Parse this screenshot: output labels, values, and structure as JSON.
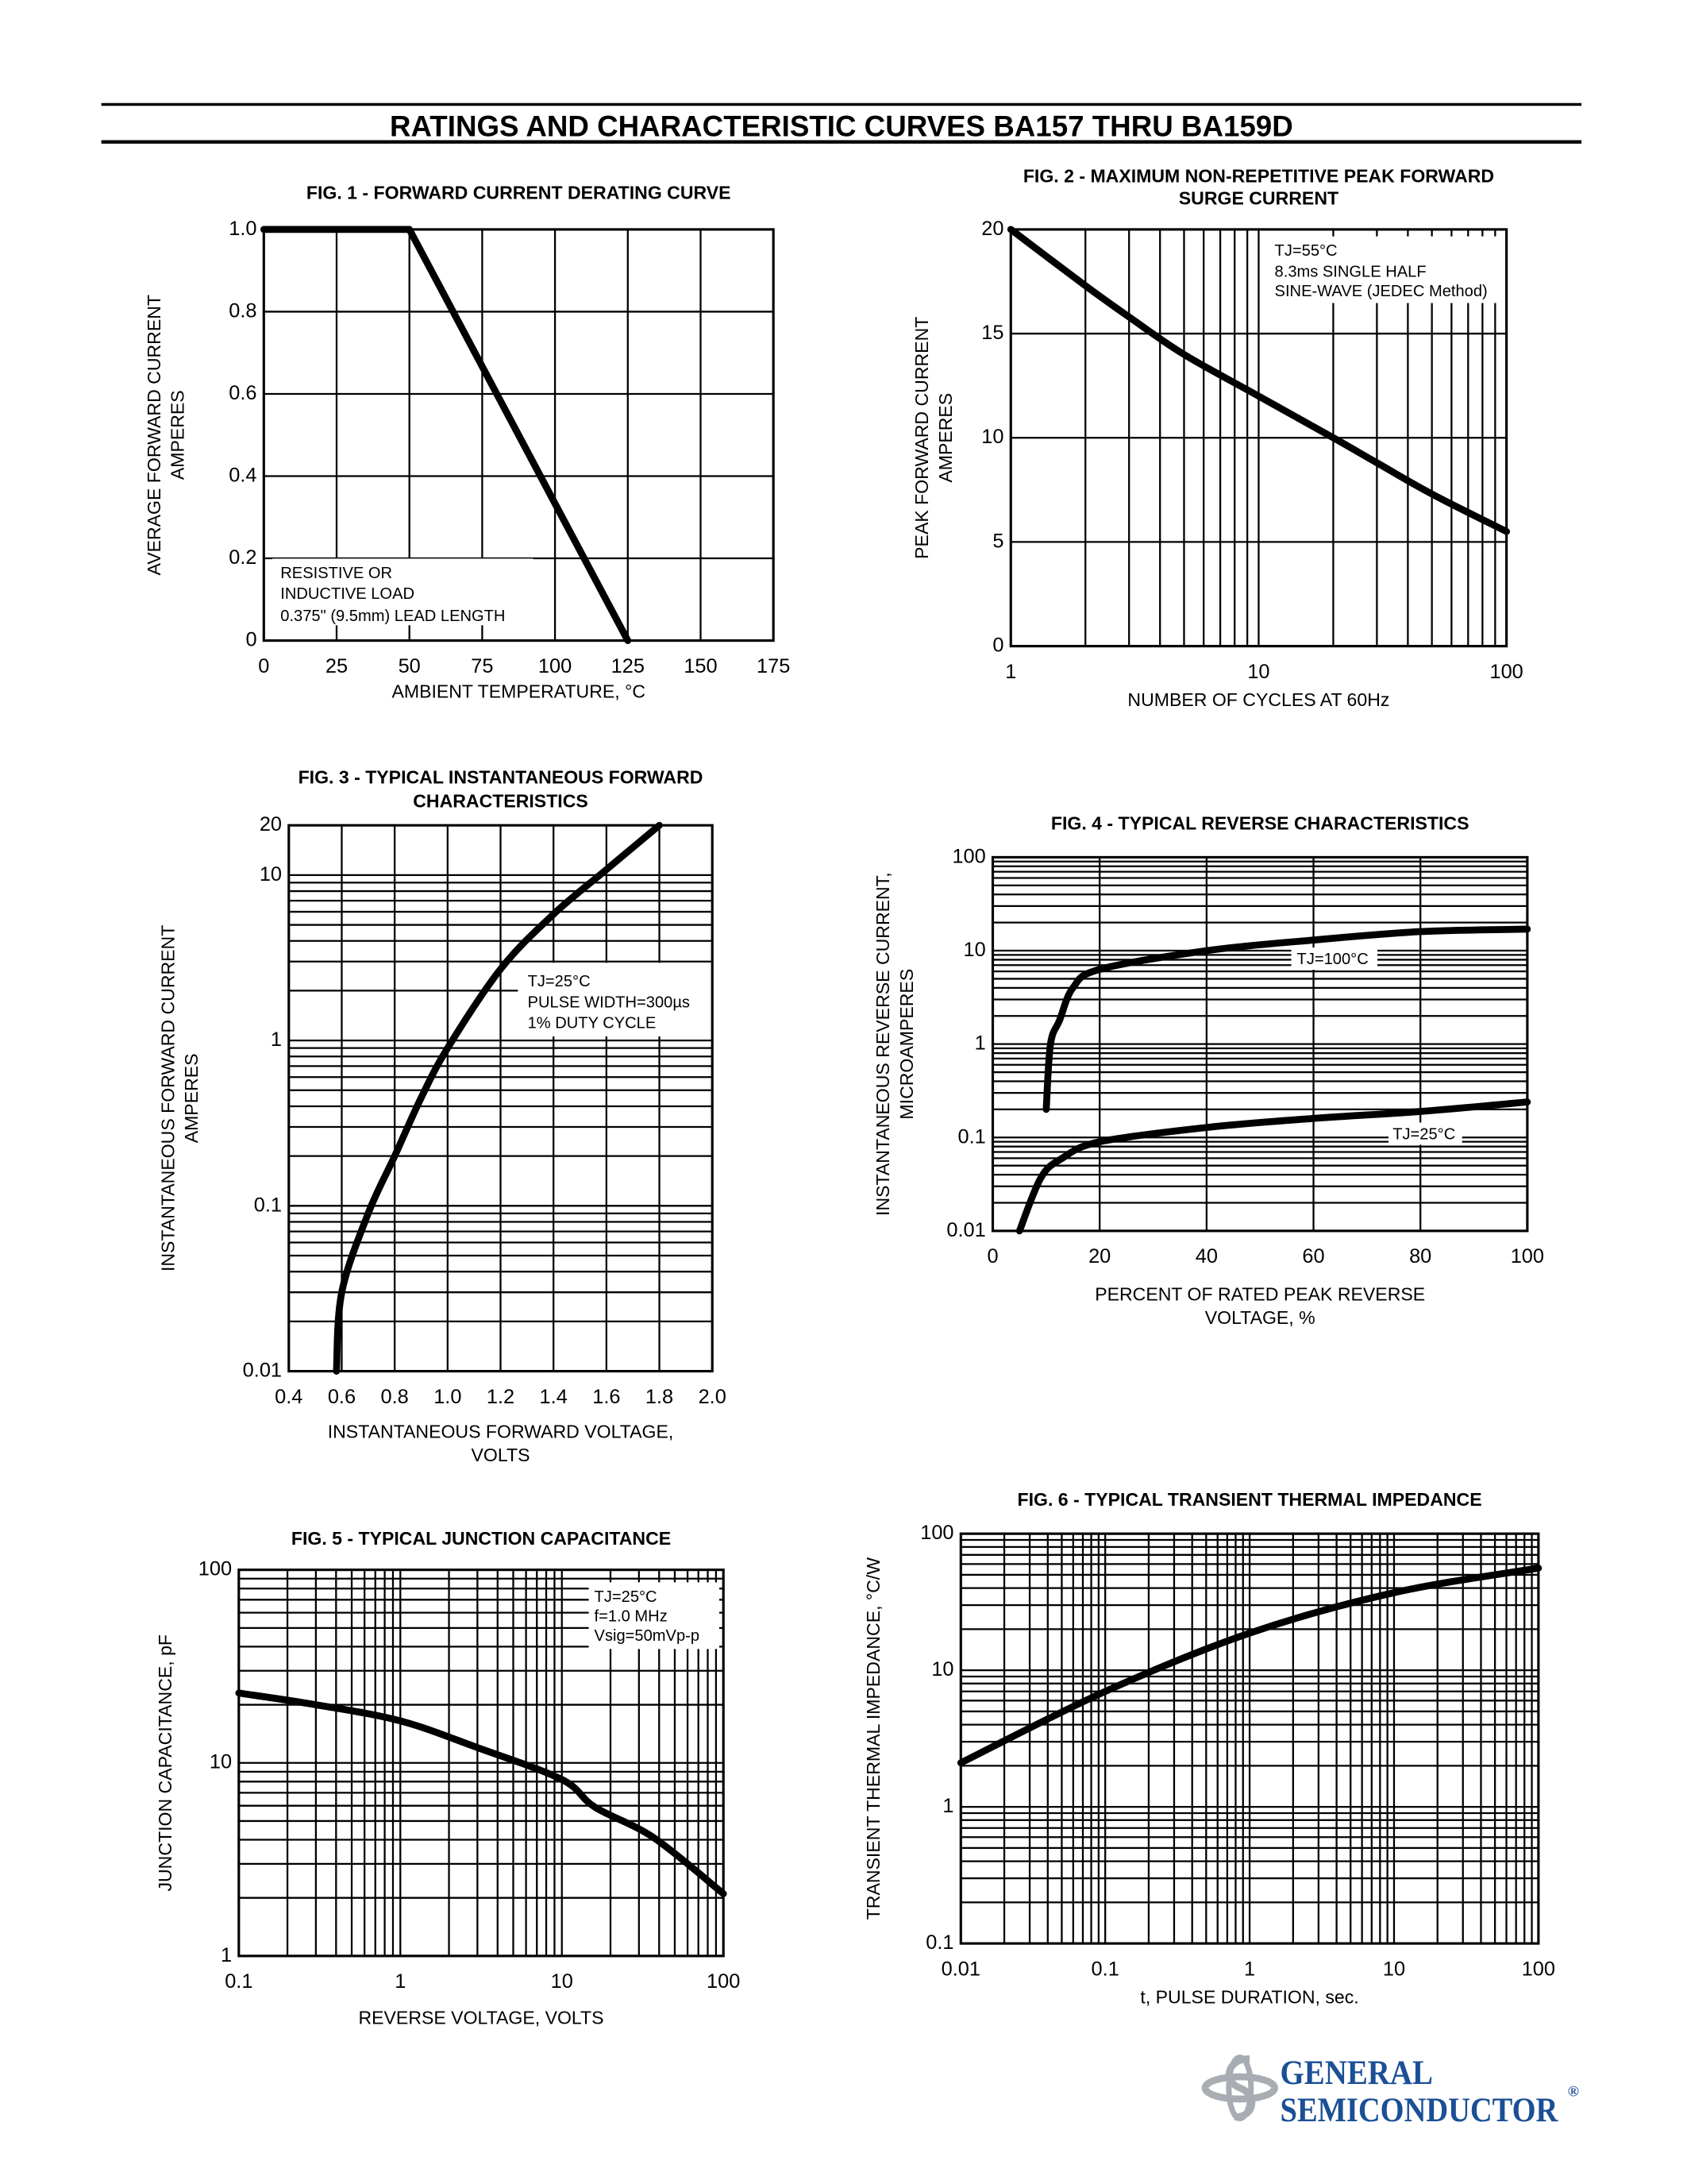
{
  "header": {
    "title": "RATINGS AND CHARACTERISTIC CURVES BA157 THRU BA159D"
  },
  "logo": {
    "line1": "GENERAL",
    "line2": "SEMICONDUCTOR",
    "mark": "®",
    "color": "#1b4f96",
    "emblem_color": "#a8adb3"
  },
  "chart_data": [
    {
      "type": "line",
      "title": [
        "FIG. 1 - FORWARD CURRENT DERATING CURVE"
      ],
      "xlabel": [
        "AMBIENT TEMPERATURE, °C"
      ],
      "ylabel": [
        "AVERAGE FORWARD CURRENT",
        "AMPERES"
      ],
      "xscale": "linear",
      "yscale": "linear",
      "xlim": [
        0,
        175
      ],
      "ylim": [
        0,
        1.0
      ],
      "xticks": [
        0,
        25,
        50,
        75,
        100,
        125,
        150,
        175
      ],
      "xtick_labels": [
        "0",
        "25",
        "50",
        "75",
        "100",
        "125",
        "150",
        "175"
      ],
      "yticks": [
        0,
        0.2,
        0.4,
        0.6,
        0.8,
        1.0
      ],
      "ytick_labels": [
        "0",
        "0.2",
        "0.4",
        "0.6",
        "0.8",
        "1.0"
      ],
      "grid": true,
      "series": [
        {
          "smooth": false,
          "points": [
            [
              0,
              1.0
            ],
            [
              50,
              1.0
            ],
            [
              125,
              0
            ]
          ]
        }
      ],
      "annotations": [
        {
          "lines": [
            "RESISTIVE OR",
            "INDUCTIVE LOAD",
            "0.375\" (9.5mm) LEAD LENGTH"
          ]
        }
      ]
    },
    {
      "type": "line",
      "title": [
        "FIG. 2 - MAXIMUM NON-REPETITIVE PEAK FORWARD",
        "SURGE CURRENT"
      ],
      "xlabel": [
        "NUMBER OF CYCLES AT 60Hz"
      ],
      "ylabel": [
        "PEAK FORWARD CURRENT",
        "AMPERES"
      ],
      "xscale": "log",
      "yscale": "linear",
      "xlim": [
        1,
        100
      ],
      "ylim": [
        0,
        20
      ],
      "xticks": [
        1,
        10,
        100
      ],
      "xtick_labels": [
        "1",
        "10",
        "100"
      ],
      "yticks": [
        0,
        5,
        10,
        15,
        20
      ],
      "ytick_labels": [
        "0",
        "5",
        "10",
        "15",
        "20"
      ],
      "grid": true,
      "series": [
        {
          "smooth": true,
          "points": [
            [
              1,
              20
            ],
            [
              2,
              17.3
            ],
            [
              3,
              15.8
            ],
            [
              5,
              14
            ],
            [
              10,
              12
            ],
            [
              20,
              10
            ],
            [
              30,
              8.8
            ],
            [
              50,
              7.3
            ],
            [
              100,
              5.5
            ]
          ]
        }
      ],
      "annotations": [
        {
          "lines": [
            "TJ=55°C",
            "8.3ms SINGLE HALF",
            "SINE-WAVE (JEDEC Method)"
          ]
        }
      ]
    },
    {
      "type": "line",
      "title": [
        "FIG. 3 - TYPICAL INSTANTANEOUS FORWARD",
        "CHARACTERISTICS"
      ],
      "xlabel": [
        "INSTANTANEOUS FORWARD VOLTAGE,",
        "VOLTS"
      ],
      "ylabel": [
        "INSTANTANEOUS FORWARD CURRENT",
        "AMPERES"
      ],
      "xscale": "linear",
      "yscale": "log",
      "xlim": [
        0.4,
        2.0
      ],
      "ylim": [
        0.01,
        20
      ],
      "xticks": [
        0.4,
        0.6,
        0.8,
        1.0,
        1.2,
        1.4,
        1.6,
        1.8,
        2.0
      ],
      "xtick_labels": [
        "0.4",
        "0.6",
        "0.8",
        "1.0",
        "1.2",
        "1.4",
        "1.6",
        "1.8",
        "2.0"
      ],
      "yticks": [
        0.01,
        0.1,
        1,
        10,
        20
      ],
      "ytick_labels": [
        "0.01",
        "0.1",
        "1",
        "10",
        "20"
      ],
      "grid": true,
      "series": [
        {
          "smooth": true,
          "points": [
            [
              0.58,
              0.01
            ],
            [
              0.6,
              0.03
            ],
            [
              0.7,
              0.09
            ],
            [
              0.8,
              0.2
            ],
            [
              0.9,
              0.45
            ],
            [
              1.0,
              0.9
            ],
            [
              1.2,
              2.7
            ],
            [
              1.4,
              5.8
            ],
            [
              1.6,
              10.8
            ],
            [
              1.8,
              20
            ]
          ]
        }
      ],
      "annotations": [
        {
          "lines": [
            "TJ=25°C",
            "PULSE WIDTH=300µs",
            "1% DUTY CYCLE"
          ]
        }
      ]
    },
    {
      "type": "line",
      "title": [
        "FIG. 4 - TYPICAL REVERSE CHARACTERISTICS"
      ],
      "xlabel": [
        "PERCENT OF RATED PEAK REVERSE",
        "VOLTAGE, %"
      ],
      "ylabel": [
        "INSTANTANEOUS REVERSE CURRENT,",
        "MICROAMPERES"
      ],
      "xscale": "linear",
      "yscale": "log",
      "xlim": [
        0,
        100
      ],
      "ylim": [
        0.01,
        100
      ],
      "xticks": [
        0,
        20,
        40,
        60,
        80,
        100
      ],
      "xtick_labels": [
        "0",
        "20",
        "40",
        "60",
        "80",
        "100"
      ],
      "yticks": [
        0.01,
        0.1,
        1,
        10,
        100
      ],
      "ytick_labels": [
        "0.01",
        "0.1",
        "1",
        "10",
        "100"
      ],
      "grid": true,
      "series": [
        {
          "name": "TJ=100°C",
          "smooth": true,
          "points": [
            [
              10,
              0.2
            ],
            [
              10.8,
              1
            ],
            [
              12.5,
              1.8
            ],
            [
              15,
              4
            ],
            [
              20,
              6.3
            ],
            [
              40,
              10
            ],
            [
              60,
              13
            ],
            [
              80,
              16
            ],
            [
              100,
              17
            ]
          ]
        },
        {
          "name": "TJ=25°C",
          "smooth": true,
          "points": [
            [
              5,
              0.01
            ],
            [
              9,
              0.037
            ],
            [
              13,
              0.06
            ],
            [
              20,
              0.09
            ],
            [
              40,
              0.128
            ],
            [
              60,
              0.16
            ],
            [
              80,
              0.19
            ],
            [
              100,
              0.24
            ]
          ]
        }
      ],
      "annotations": []
    },
    {
      "type": "line",
      "title": [
        "FIG. 5 - TYPICAL JUNCTION CAPACITANCE"
      ],
      "xlabel": [
        "REVERSE VOLTAGE, VOLTS"
      ],
      "ylabel": [
        "JUNCTION CAPACITANCE, pF"
      ],
      "xscale": "log",
      "yscale": "log",
      "xlim": [
        0.1,
        100
      ],
      "ylim": [
        1,
        100
      ],
      "xticks": [
        0.1,
        1,
        10,
        100
      ],
      "xtick_labels": [
        "0.1",
        "1",
        "10",
        "100"
      ],
      "yticks": [
        1,
        10,
        100
      ],
      "ytick_labels": [
        "1",
        "10",
        "100"
      ],
      "grid": true,
      "series": [
        {
          "smooth": true,
          "points": [
            [
              0.1,
              23
            ],
            [
              0.3,
              20
            ],
            [
              1,
              16.5
            ],
            [
              3,
              12
            ],
            [
              10,
              8.2
            ],
            [
              16,
              5.9
            ],
            [
              37,
              4.1
            ],
            [
              100,
              2.1
            ]
          ]
        }
      ],
      "annotations": [
        {
          "lines": [
            "TJ=25°C",
            "f=1.0 MHz",
            "Vsig=50mVp-p"
          ]
        }
      ]
    },
    {
      "type": "line",
      "title": [
        "FIG. 6 - TYPICAL TRANSIENT THERMAL IMPEDANCE"
      ],
      "xlabel": [
        "t, PULSE DURATION, sec."
      ],
      "ylabel": [
        "TRANSIENT THERMAL IMPEDANCE, °C/W"
      ],
      "xscale": "log",
      "yscale": "log",
      "xlim": [
        0.01,
        100
      ],
      "ylim": [
        0.1,
        100
      ],
      "xticks": [
        0.01,
        0.1,
        1,
        10,
        100
      ],
      "xtick_labels": [
        "0.01",
        "0.1",
        "1",
        "10",
        "100"
      ],
      "yticks": [
        0.1,
        1,
        10,
        100
      ],
      "ytick_labels": [
        "0.1",
        "1",
        "10",
        "100"
      ],
      "grid": true,
      "series": [
        {
          "smooth": true,
          "points": [
            [
              0.01,
              2.1
            ],
            [
              0.1,
              7
            ],
            [
              1,
              18.7
            ],
            [
              10,
              37
            ],
            [
              100,
              56
            ]
          ]
        }
      ],
      "annotations": []
    }
  ]
}
